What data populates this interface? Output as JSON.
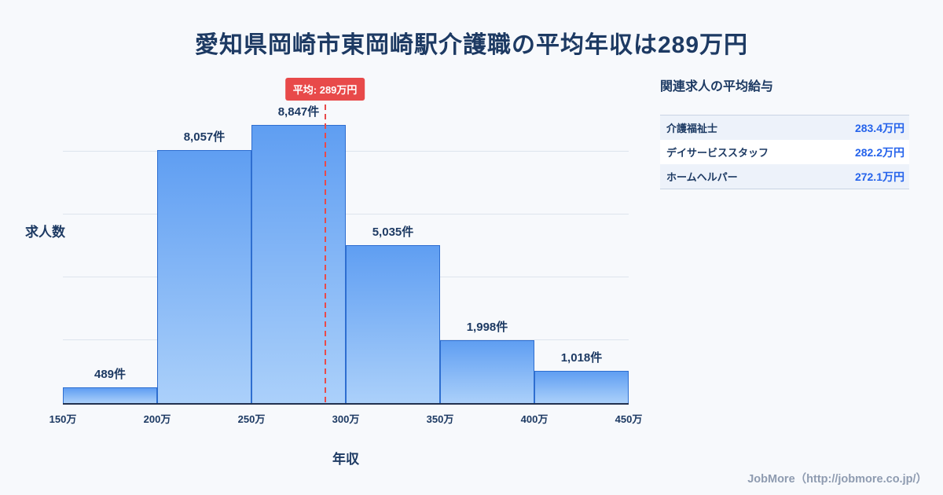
{
  "title": "愛知県岡崎市東岡崎駅介護職の平均年収は289万円",
  "chart_data": {
    "type": "bar",
    "title": "愛知県岡崎市東岡崎駅介護職の平均年収は289万円",
    "xlabel": "年収",
    "ylabel": "求人数",
    "x_ticks": [
      "150万",
      "200万",
      "250万",
      "300万",
      "350万",
      "400万",
      "450万"
    ],
    "x_range": [
      150,
      450
    ],
    "bin_width": 50,
    "values": [
      489,
      8057,
      8847,
      5035,
      1998,
      1018
    ],
    "bar_labels": [
      "489件",
      "8,057件",
      "8,847件",
      "5,035件",
      "1,998件",
      "1,018件"
    ],
    "ylim": [
      0,
      9500
    ],
    "grid": true,
    "grid_step": 2000,
    "legend": "none",
    "average": {
      "value": 289,
      "label": "平均: 289万円"
    }
  },
  "related": {
    "heading": "関連求人の平均給与",
    "rows": [
      {
        "job": "介護福祉士",
        "salary": "283.4万円"
      },
      {
        "job": "デイサービススタッフ",
        "salary": "282.2万円"
      },
      {
        "job": "ホームヘルパー",
        "salary": "272.1万円"
      }
    ]
  },
  "footer": {
    "credit": "JobMore（http://jobmore.co.jp/）"
  },
  "colors": {
    "bg": "#f7f9fc",
    "text_dark": "#1d3a63",
    "bar_top": "#5f9ef2",
    "bar_bottom": "#abd0fa",
    "bar_border": "#2e6ed0",
    "axis": "#22314f",
    "grid": "#dde4ee",
    "red": "#e84a4a",
    "blue": "#2563eb",
    "row_alt": "#edf2fa",
    "table_border": "#c9d4e4",
    "muted": "#8e9bb0"
  }
}
